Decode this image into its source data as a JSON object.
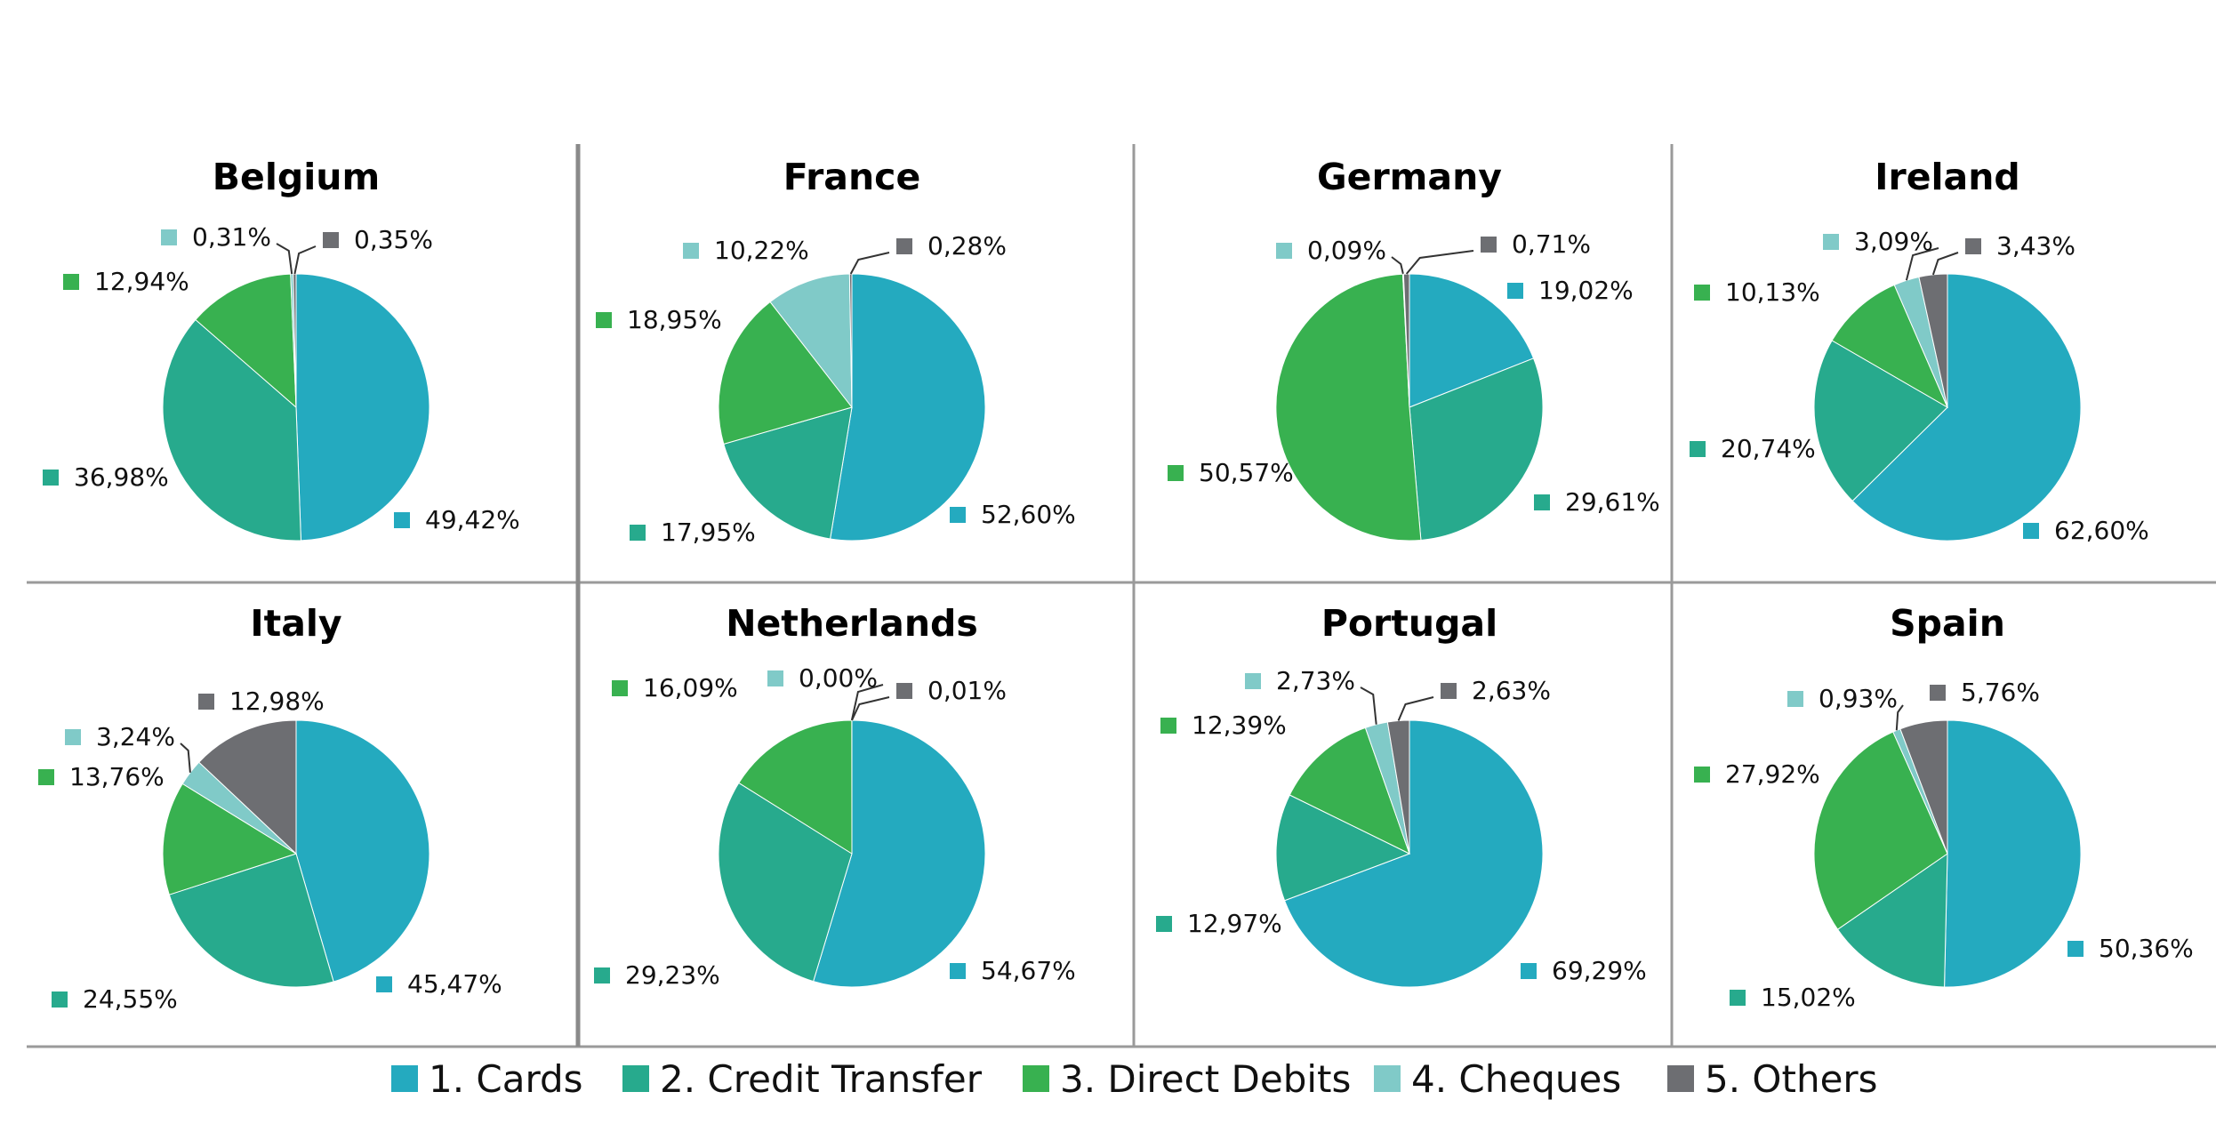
{
  "chart_data": {
    "type": "pie",
    "legend_position": "bottom",
    "series": [
      {
        "name": "1. Cards",
        "color": "#24AABF"
      },
      {
        "name": "2. Credit Transfer",
        "color": "#27AA8D"
      },
      {
        "name": "3. Direct Debits",
        "color": "#38B150"
      },
      {
        "name": "4. Cheques",
        "color": "#80CAC8"
      },
      {
        "name": "5. Others",
        "color": "#6D6E72"
      }
    ],
    "charts": [
      {
        "title": "Belgium",
        "values": [
          49.42,
          36.98,
          12.94,
          0.31,
          0.35
        ],
        "labels": [
          "49,42%",
          "36,98%",
          "12,94%",
          "0,31%",
          "0,35%"
        ]
      },
      {
        "title": "France",
        "values": [
          52.6,
          17.95,
          18.95,
          10.22,
          0.28
        ],
        "labels": [
          "52,60%",
          "17,95%",
          "18,95%",
          "10,22%",
          "0,28%"
        ]
      },
      {
        "title": "Germany",
        "values": [
          19.02,
          29.61,
          50.57,
          0.09,
          0.71
        ],
        "labels": [
          "19,02%",
          "29,61%",
          "50,57%",
          "0,09%",
          "0,71%"
        ]
      },
      {
        "title": "Ireland",
        "values": [
          62.6,
          20.74,
          10.13,
          3.09,
          3.43
        ],
        "labels": [
          "62,60%",
          "20,74%",
          "10,13%",
          "3,09%",
          "3,43%"
        ]
      },
      {
        "title": "Italy",
        "values": [
          45.47,
          24.55,
          13.76,
          3.24,
          12.98
        ],
        "labels": [
          "45,47%",
          "24,55%",
          "13,76%",
          "3,24%",
          "12,98%"
        ]
      },
      {
        "title": "Netherlands",
        "values": [
          54.67,
          29.23,
          16.09,
          0.0,
          0.01
        ],
        "labels": [
          "54,67%",
          "29,23%",
          "16,09%",
          "0,00%",
          "0,01%"
        ]
      },
      {
        "title": "Portugal",
        "values": [
          69.29,
          12.97,
          12.39,
          2.73,
          2.63
        ],
        "labels": [
          "69,29%",
          "12,97%",
          "12,39%",
          "2,73%",
          "2,63%"
        ]
      },
      {
        "title": "Spain",
        "values": [
          50.36,
          15.02,
          27.92,
          0.93,
          5.76
        ],
        "labels": [
          "50,36%",
          "15,02%",
          "27,92%",
          "0,93%",
          "5,76%"
        ]
      }
    ]
  }
}
